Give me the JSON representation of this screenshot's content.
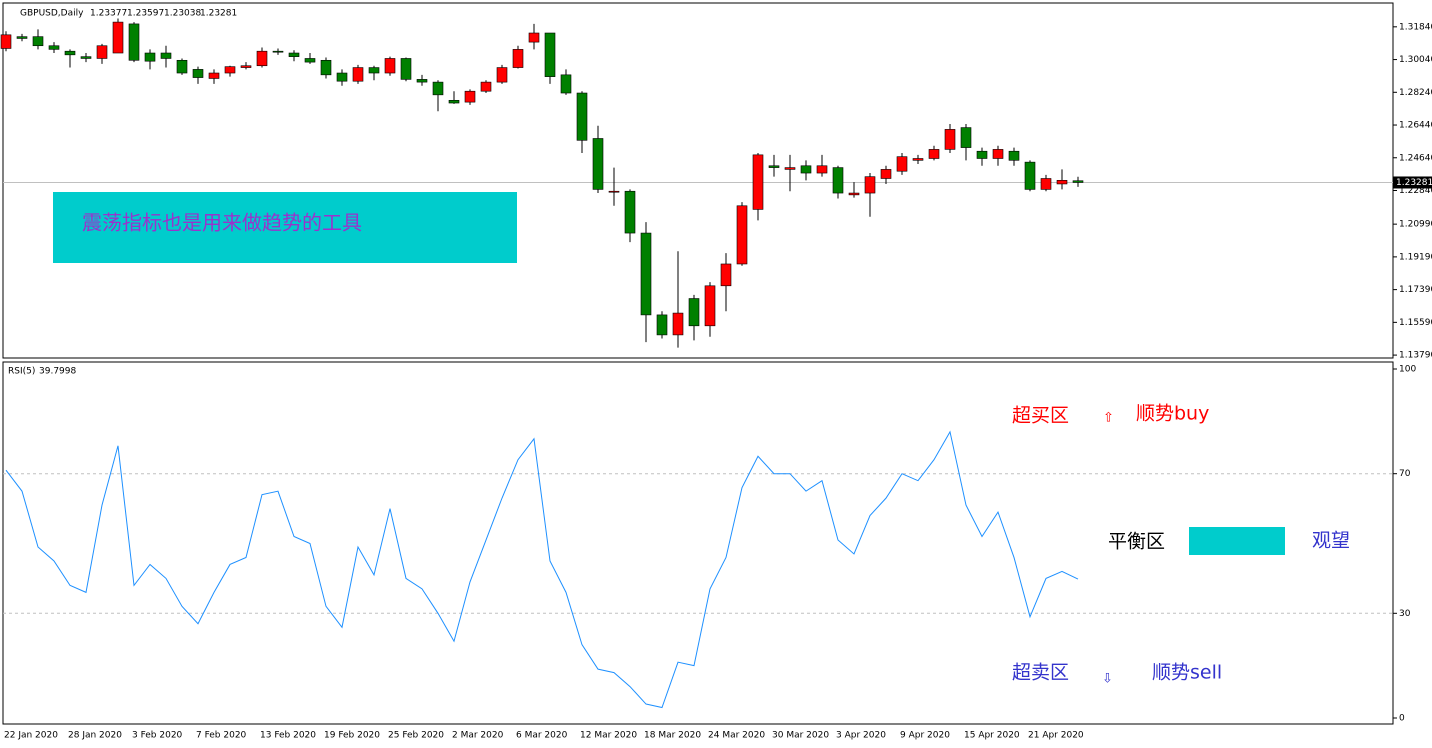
{
  "chart_data": [
    {
      "type": "candlestick",
      "title": "GBPUSD,Daily",
      "categories": [
        "22 Jan 2020",
        null,
        null,
        null,
        "28 Jan 2020",
        null,
        null,
        null,
        "3 Feb 2020",
        null,
        null,
        null,
        "7 Feb 2020",
        null,
        null,
        null,
        "13 Feb 2020",
        null,
        null,
        null,
        "19 Feb 2020",
        null,
        null,
        null,
        "25 Feb 2020",
        null,
        null,
        null,
        "2 Mar 2020",
        null,
        null,
        null,
        "6 Mar 2020",
        null,
        null,
        null,
        "12 Mar 2020",
        null,
        null,
        null,
        "18 Mar 2020",
        null,
        null,
        null,
        "24 Mar 2020",
        null,
        null,
        null,
        "30 Mar 2020",
        null,
        null,
        null,
        "3 Apr 2020",
        null,
        null,
        null,
        "9 Apr 2020",
        null,
        null,
        null,
        "15 Apr 2020",
        null,
        null,
        null,
        "21 Apr 2020",
        null,
        null,
        null
      ],
      "open": [
        1.3065,
        1.313,
        1.313,
        1.308,
        1.305,
        1.302,
        1.301,
        1.304,
        1.32,
        1.304,
        1.304,
        1.3,
        1.295,
        1.29,
        1.293,
        1.296,
        1.297,
        1.305,
        1.304,
        1.301,
        1.3,
        1.293,
        1.2885,
        1.296,
        1.293,
        1.301,
        1.2895,
        1.288,
        1.278,
        1.277,
        1.283,
        1.288,
        1.296,
        1.31,
        1.315,
        1.292,
        1.282,
        1.257,
        1.228,
        1.228,
        1.205,
        1.16,
        1.149,
        1.169,
        1.154,
        1.176,
        1.188,
        1.218,
        1.242,
        1.24,
        1.242,
        1.238,
        1.241,
        1.226,
        1.227,
        1.235,
        1.239,
        1.245,
        1.246,
        1.251,
        1.263,
        1.25,
        1.246,
        1.25,
        1.244,
        1.229,
        1.232,
        1.23377
      ],
      "high": [
        1.316,
        1.3145,
        1.317,
        1.31,
        1.306,
        1.304,
        1.309,
        1.323,
        1.321,
        1.306,
        1.308,
        1.301,
        1.2965,
        1.295,
        1.297,
        1.299,
        1.307,
        1.3065,
        1.3055,
        1.304,
        1.3015,
        1.295,
        1.2975,
        1.297,
        1.302,
        1.3015,
        1.292,
        1.289,
        1.283,
        1.284,
        1.289,
        1.2975,
        1.308,
        1.32,
        1.315,
        1.295,
        1.283,
        1.264,
        1.241,
        1.229,
        1.211,
        1.162,
        1.195,
        1.171,
        1.178,
        1.194,
        1.222,
        1.249,
        1.248,
        1.248,
        1.245,
        1.248,
        1.242,
        1.233,
        1.238,
        1.242,
        1.249,
        1.248,
        1.253,
        1.265,
        1.265,
        1.252,
        1.253,
        1.252,
        1.245,
        1.237,
        1.24,
        1.23597
      ],
      "low": [
        1.305,
        1.3105,
        1.306,
        1.304,
        1.296,
        1.299,
        1.298,
        1.304,
        1.299,
        1.295,
        1.296,
        1.292,
        1.287,
        1.287,
        1.291,
        1.295,
        1.296,
        1.303,
        1.2995,
        1.298,
        1.29,
        1.286,
        1.287,
        1.289,
        1.2915,
        1.2885,
        1.286,
        1.272,
        1.276,
        1.2755,
        1.282,
        1.287,
        1.2955,
        1.306,
        1.287,
        1.281,
        1.249,
        1.227,
        1.22,
        1.2,
        1.145,
        1.147,
        1.142,
        1.146,
        1.148,
        1.162,
        1.187,
        1.212,
        1.236,
        1.228,
        1.234,
        1.236,
        1.224,
        1.2245,
        1.214,
        1.232,
        1.237,
        1.243,
        1.245,
        1.249,
        1.245,
        1.242,
        1.242,
        1.242,
        1.228,
        1.228,
        1.229,
        1.23038
      ],
      "close": [
        1.314,
        1.312,
        1.308,
        1.306,
        1.303,
        1.301,
        1.308,
        1.321,
        1.3,
        1.2995,
        1.301,
        1.293,
        1.2905,
        1.293,
        1.2965,
        1.297,
        1.305,
        1.3045,
        1.302,
        1.299,
        1.292,
        1.2885,
        1.296,
        1.293,
        1.301,
        1.2895,
        1.288,
        1.281,
        1.2765,
        1.283,
        1.288,
        1.296,
        1.306,
        1.315,
        1.291,
        1.282,
        1.256,
        1.229,
        1.228,
        1.205,
        1.16,
        1.149,
        1.161,
        1.154,
        1.176,
        1.188,
        1.22,
        1.248,
        1.241,
        1.241,
        1.238,
        1.242,
        1.227,
        1.227,
        1.236,
        1.24,
        1.247,
        1.246,
        1.251,
        1.262,
        1.252,
        1.246,
        1.251,
        1.245,
        1.229,
        1.235,
        1.234,
        1.23281
      ],
      "up_color": "#ff0000",
      "down_color": "#008000",
      "ylim": [
        1.1363,
        1.3315
      ],
      "yticks": [
        {
          "value": 1.1379,
          "label": "1.13790"
        },
        {
          "value": 1.1559,
          "label": "1.15590"
        },
        {
          "value": 1.1739,
          "label": "1.17390"
        },
        {
          "value": 1.1919,
          "label": "1.19190"
        },
        {
          "value": 1.2099,
          "label": "1.20990"
        },
        {
          "value": 1.2284,
          "label": "1.22840"
        },
        {
          "value": 1.2464,
          "label": "1.24640"
        },
        {
          "value": 1.2644,
          "label": "1.26440"
        },
        {
          "value": 1.2824,
          "label": "1.28240"
        },
        {
          "value": 1.3004,
          "label": "1.30040"
        },
        {
          "value": 1.3184,
          "label": "1.31840"
        }
      ]
    },
    {
      "type": "line",
      "title": "RSI(5)",
      "color": "#1e90ff",
      "values": [
        71,
        65,
        49,
        45,
        38,
        36,
        61,
        78,
        38,
        44,
        40,
        32,
        27,
        36,
        44,
        46,
        64,
        65,
        52,
        50,
        32,
        26,
        49,
        41,
        60,
        40,
        37,
        30,
        22,
        39,
        51,
        63,
        74,
        80,
        45,
        36,
        21,
        14,
        13,
        9,
        4,
        3,
        16,
        15,
        37,
        46,
        66,
        75,
        70,
        70,
        65,
        68,
        51,
        47,
        58,
        63,
        70,
        68,
        74,
        82,
        61,
        52,
        59,
        46,
        29,
        40,
        42,
        39.7998
      ],
      "ylim": [
        0,
        100
      ],
      "yticks": [
        0,
        30,
        70,
        100
      ],
      "levels": [
        30,
        70
      ]
    }
  ],
  "annotations": {
    "box_text": "震荡指标也是用来做趋势的工具",
    "overbought": "超买区",
    "up_arrow": "⇧",
    "buy": "顺势buy",
    "neutral": "平衡区",
    "wait": "观望",
    "oversold": "超卖区",
    "down_arrow": "⇩",
    "sell": "顺势sell"
  }
}
